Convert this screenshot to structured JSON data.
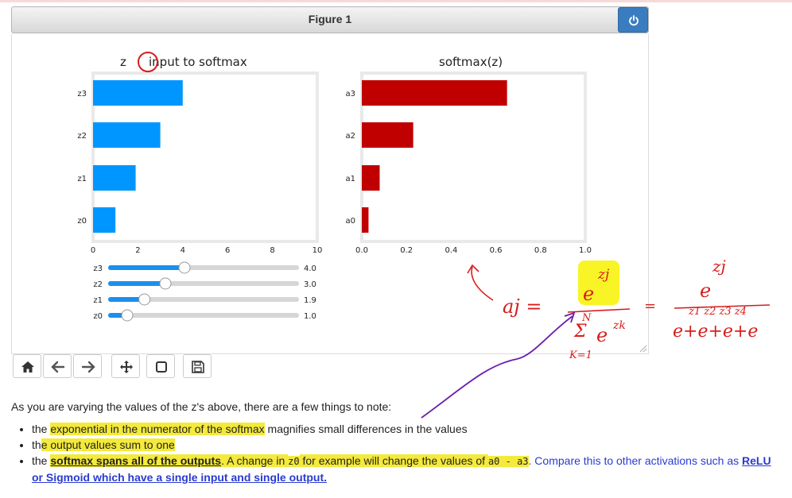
{
  "figure": {
    "title": "Figure 1"
  },
  "chart_data": [
    {
      "type": "bar",
      "orientation": "horizontal",
      "title": "input to softmax",
      "title_prefix": "z",
      "categories": [
        "z0",
        "z1",
        "z2",
        "z3"
      ],
      "values": [
        1.0,
        1.9,
        3.0,
        4.0
      ],
      "xlim": [
        0,
        10
      ],
      "xticks": [
        "0",
        "2",
        "4",
        "6",
        "8",
        "10"
      ],
      "color": "#0096ff"
    },
    {
      "type": "bar",
      "orientation": "horizontal",
      "title": "softmax(z)",
      "categories": [
        "a0",
        "a1",
        "a2",
        "a3"
      ],
      "values": [
        0.03,
        0.08,
        0.23,
        0.65
      ],
      "xlim": [
        0,
        1.0
      ],
      "xticks": [
        "0.0",
        "0.2",
        "0.4",
        "0.6",
        "0.8",
        "1.0"
      ],
      "color": "#c00000"
    }
  ],
  "sliders": [
    {
      "label": "z3",
      "value": 4.0,
      "value_text": "4.0"
    },
    {
      "label": "z2",
      "value": 3.0,
      "value_text": "3.0"
    },
    {
      "label": "z1",
      "value": 1.9,
      "value_text": "1.9"
    },
    {
      "label": "z0",
      "value": 1.0,
      "value_text": "1.0"
    }
  ],
  "slider_range": [
    0,
    10
  ],
  "toolbar": [
    "home-icon",
    "back-arrow-icon",
    "forward-arrow-icon",
    "pan-icon",
    "zoom-rect-icon",
    "save-icon"
  ],
  "text": {
    "intro": "As you are varying the values of the z's above, there are a few things to note:",
    "b1_a": "the ",
    "b1_hl": "exponential in the numerator of the softmax",
    "b1_b": " magnifies small differences in the values",
    "b2_a": "th",
    "b2_hl": "e output values sum to one",
    "b3_a": "the ",
    "b3_hl1": "softmax spans all of the outputs",
    "b3_hl2": ". A change in ",
    "b3_code1": "z0",
    "b3_hl3": " for example will change the values of ",
    "b3_code2": "a0 - a3",
    "b3_c": ". Compare this to other activations such as ",
    "b3_link1": "ReLU",
    "b3_link2": "or Sigmoid which have a single input and single output."
  },
  "annotation": {
    "lhs": "aj =",
    "numerator": "e",
    "numerator_exp": "zj",
    "sum_top": "N",
    "sum_symbol": "Σ",
    "sum_term": "e",
    "sum_exp": "zk",
    "sum_bottom": "K=1",
    "eq": "=",
    "rhs_num": "e",
    "rhs_num_exp": "zj",
    "rhs_den": "e+e+e+e",
    "rhs_den_exps": "z1 z2 z3 z4"
  },
  "colors": {
    "ink_red": "#d81c1c",
    "ink_purple": "#6a1fb0",
    "highlight": "#f4ea3b",
    "power": "#3a7cc0"
  }
}
